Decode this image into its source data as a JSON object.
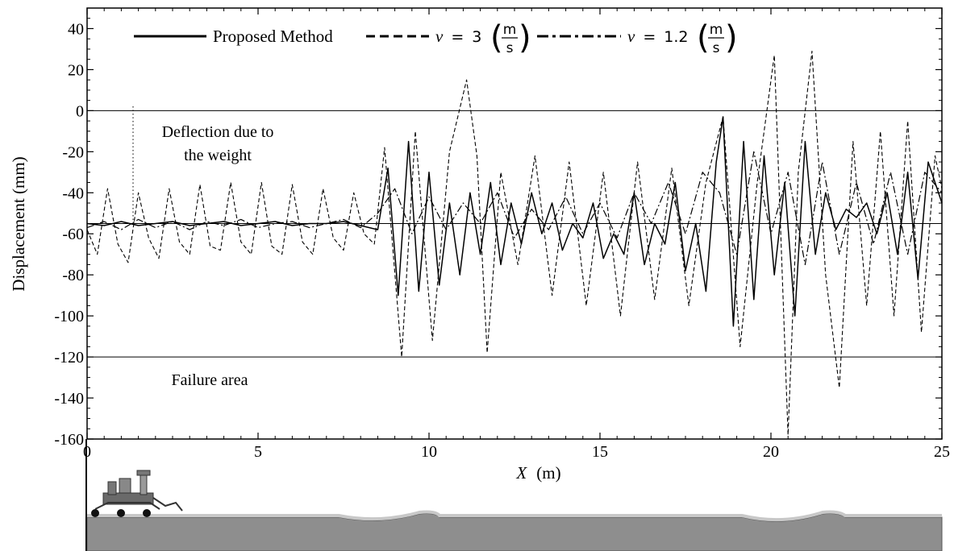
{
  "chart_data": {
    "type": "line",
    "title": "",
    "xlabel_var": "X",
    "xlabel_unit": "(m)",
    "ylabel": "Displacement  (mm)",
    "xlim": [
      0,
      25
    ],
    "ylim": [
      -160,
      50
    ],
    "x_ticks": [
      "0",
      "5",
      "10",
      "15",
      "20",
      "25"
    ],
    "y_ticks": [
      "40",
      "20",
      "0",
      "-20",
      "-40",
      "-60",
      "-80",
      "-100",
      "-120",
      "-140",
      "-160"
    ],
    "reference_lines": [
      0,
      -55,
      -120
    ],
    "annotations": {
      "deflection_line1": "Deflection due to",
      "deflection_line2": "the weight",
      "failure": "Failure area"
    },
    "legend": {
      "proposed": "Proposed Method",
      "v_symbol": "v",
      "equals": "=",
      "v1_value": "3",
      "v2_value": "1.2",
      "unit_num": "m",
      "unit_den": "s"
    },
    "series": [
      {
        "name": "Proposed Method",
        "style": "solid",
        "color": "#000000",
        "x": [
          0,
          0.5,
          1,
          1.5,
          2,
          2.5,
          3,
          3.5,
          4,
          4.5,
          5,
          5.5,
          6,
          6.5,
          7,
          7.5,
          8,
          8.5,
          8.8,
          9.1,
          9.4,
          9.7,
          10,
          10.3,
          10.6,
          10.9,
          11.2,
          11.5,
          11.8,
          12.1,
          12.4,
          12.7,
          13,
          13.3,
          13.6,
          13.9,
          14.2,
          14.5,
          14.8,
          15.1,
          15.4,
          15.7,
          16,
          16.3,
          16.6,
          16.9,
          17.2,
          17.5,
          17.8,
          18.1,
          18.4,
          18.6,
          18.9,
          19.2,
          19.5,
          19.8,
          20.1,
          20.4,
          20.7,
          21,
          21.3,
          21.6,
          21.9,
          22.2,
          22.5,
          22.8,
          23.1,
          23.4,
          23.7,
          24,
          24.3,
          24.6,
          25
        ],
        "values": [
          -55,
          -56,
          -54,
          -56,
          -55,
          -54,
          -56,
          -55,
          -54,
          -56,
          -55,
          -54,
          -56,
          -55,
          -55,
          -54,
          -56,
          -58,
          -28,
          -90,
          -15,
          -88,
          -30,
          -85,
          -45,
          -80,
          -40,
          -70,
          -35,
          -75,
          -45,
          -65,
          -40,
          -60,
          -45,
          -68,
          -55,
          -62,
          -45,
          -72,
          -60,
          -70,
          -40,
          -75,
          -55,
          -65,
          -35,
          -78,
          -55,
          -88,
          -25,
          -3,
          -105,
          -15,
          -92,
          -22,
          -80,
          -35,
          -100,
          -15,
          -70,
          -40,
          -58,
          -48,
          -52,
          -45,
          -60,
          -40,
          -70,
          -30,
          -82,
          -25,
          -45
        ]
      },
      {
        "name": "v = 3 (m/s)",
        "style": "dashed",
        "color": "#000000",
        "x": [
          0,
          0.3,
          0.6,
          0.9,
          1.2,
          1.5,
          1.8,
          2.1,
          2.4,
          2.7,
          3,
          3.3,
          3.6,
          3.9,
          4.2,
          4.5,
          4.8,
          5.1,
          5.4,
          5.7,
          6,
          6.3,
          6.6,
          6.9,
          7.2,
          7.5,
          7.8,
          8.1,
          8.4,
          8.7,
          9.2,
          9.6,
          10.1,
          10.6,
          11.1,
          11.4,
          11.7,
          12.1,
          12.6,
          13.1,
          13.6,
          14.1,
          14.6,
          15.1,
          15.6,
          16.1,
          16.6,
          17.1,
          17.6,
          18.1,
          18.6,
          19.1,
          19.6,
          20.1,
          20.5,
          20.8,
          21.2,
          21.6,
          22,
          22.4,
          22.8,
          23.2,
          23.6,
          24,
          24.4,
          24.8,
          25
        ],
        "values": [
          -58,
          -70,
          -38,
          -65,
          -74,
          -40,
          -62,
          -72,
          -38,
          -64,
          -70,
          -36,
          -66,
          -68,
          -35,
          -64,
          -70,
          -35,
          -66,
          -70,
          -36,
          -64,
          -70,
          -38,
          -62,
          -68,
          -40,
          -60,
          -65,
          -18,
          -120,
          -10,
          -112,
          -20,
          15,
          -22,
          -118,
          -30,
          -75,
          -22,
          -90,
          -25,
          -95,
          -30,
          -100,
          -25,
          -92,
          -28,
          -95,
          -35,
          -3,
          -115,
          -35,
          27,
          -158,
          -30,
          29,
          -80,
          -135,
          -15,
          -95,
          -10,
          -100,
          -5,
          -108,
          -22,
          -38
        ]
      },
      {
        "name": "v = 1.2 (m/s)",
        "style": "dashdot",
        "color": "#000000",
        "x": [
          0,
          0.5,
          1,
          1.5,
          2,
          2.5,
          3,
          3.5,
          4,
          4.5,
          5,
          5.5,
          6,
          6.5,
          7,
          7.5,
          8,
          8.5,
          9,
          9.5,
          10,
          10.5,
          11,
          11.5,
          12,
          12.5,
          13,
          13.5,
          14,
          14.5,
          15,
          15.5,
          16,
          16.5,
          17,
          17.5,
          18,
          18.5,
          19,
          19.5,
          20,
          20.5,
          21,
          21.5,
          22,
          22.5,
          23,
          23.5,
          24,
          24.5,
          25
        ],
        "values": [
          -57,
          -54,
          -58,
          -53,
          -57,
          -54,
          -58,
          -54,
          -56,
          -53,
          -57,
          -55,
          -54,
          -57,
          -55,
          -53,
          -57,
          -50,
          -38,
          -60,
          -42,
          -58,
          -45,
          -55,
          -40,
          -62,
          -48,
          -58,
          -42,
          -60,
          -45,
          -62,
          -40,
          -55,
          -35,
          -60,
          -30,
          -40,
          -70,
          -20,
          -60,
          -30,
          -75,
          -25,
          -70,
          -35,
          -65,
          -30,
          -70,
          -30,
          -40
        ]
      }
    ]
  },
  "scene": {
    "description_colors": {
      "ground": "#8e8e8e",
      "ground_top": "#b8b8b8",
      "rover_body": "#6a6a6a"
    }
  }
}
